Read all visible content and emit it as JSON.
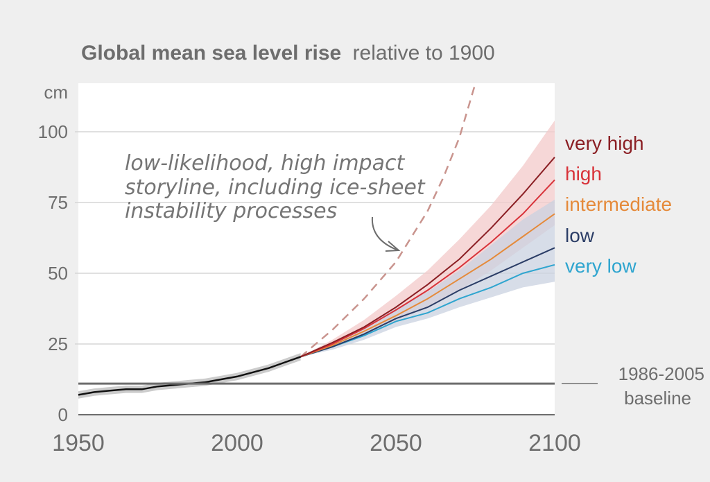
{
  "chart_data": {
    "type": "line",
    "title": "Global mean sea level rise",
    "subtitle": "relative to 1900",
    "ylabel": "cm",
    "xlim": [
      1950,
      2100
    ],
    "ylim": [
      0,
      115
    ],
    "xticks": [
      "1950",
      "2000",
      "2050",
      "2100"
    ],
    "yticks": [
      "0",
      "25",
      "50",
      "75",
      "100"
    ],
    "grid": true,
    "baseline": {
      "value": 11,
      "label_line1": "1986-2005",
      "label_line2": "baseline"
    },
    "annotation": {
      "lines": [
        "low-likelihood, high impact",
        "storyline, including ice-sheet",
        "instability processes"
      ]
    },
    "observed": {
      "x": [
        1950,
        1955,
        1960,
        1965,
        1970,
        1975,
        1980,
        1985,
        1990,
        1995,
        2000,
        2005,
        2010,
        2015,
        2020
      ],
      "y": [
        7,
        8,
        8.5,
        9,
        9,
        10,
        10.5,
        11,
        11.5,
        12.5,
        13.5,
        15,
        16.5,
        18.5,
        20.5
      ]
    },
    "series": [
      {
        "name": "very high",
        "color": "#8b1f24",
        "x": [
          2020,
          2030,
          2040,
          2050,
          2060,
          2070,
          2080,
          2090,
          2100
        ],
        "y": [
          20.5,
          25.5,
          31,
          38,
          46,
          55,
          66,
          78,
          91
        ]
      },
      {
        "name": "high",
        "color": "#d8333a",
        "x": [
          2020,
          2030,
          2040,
          2050,
          2060,
          2070,
          2080,
          2090,
          2100
        ],
        "y": [
          20.5,
          25,
          30.5,
          37,
          44,
          52,
          61,
          71,
          83
        ]
      },
      {
        "name": "intermediate",
        "color": "#e58a3a",
        "x": [
          2020,
          2030,
          2040,
          2050,
          2060,
          2070,
          2080,
          2090,
          2100
        ],
        "y": [
          20.5,
          24.5,
          29.5,
          35,
          41,
          48,
          55,
          63,
          71
        ]
      },
      {
        "name": "low",
        "color": "#2b3d66",
        "x": [
          2020,
          2030,
          2040,
          2050,
          2060,
          2070,
          2080,
          2090,
          2100
        ],
        "y": [
          20.5,
          24,
          28.5,
          34,
          38,
          44,
          49,
          54,
          59
        ]
      },
      {
        "name": "very low",
        "color": "#2fa5cf",
        "x": [
          2020,
          2030,
          2040,
          2050,
          2060,
          2070,
          2080,
          2090,
          2100
        ],
        "y": [
          20.5,
          24,
          28,
          33,
          36,
          41,
          45,
          50,
          53
        ]
      }
    ],
    "storyline": {
      "color": "#c9948e",
      "x": [
        2020,
        2030,
        2040,
        2050,
        2060,
        2065,
        2070,
        2075
      ],
      "y": [
        20.5,
        30,
        41,
        54,
        72,
        84,
        98,
        117
      ]
    },
    "bands": [
      {
        "color": "#f3c9c9",
        "x": [
          2020,
          2030,
          2040,
          2050,
          2060,
          2070,
          2080,
          2090,
          2100
        ],
        "low": [
          20.5,
          24,
          28.5,
          33,
          38,
          44,
          51,
          59,
          67
        ],
        "high": [
          20.5,
          26.5,
          33.5,
          42,
          51,
          62,
          74,
          88,
          104
        ]
      },
      {
        "color": "#c9d2e0",
        "x": [
          2020,
          2030,
          2040,
          2050,
          2060,
          2070,
          2080,
          2090,
          2100
        ],
        "low": [
          20.5,
          23,
          26.5,
          31,
          34,
          38,
          41.5,
          45,
          47
        ],
        "high": [
          20.5,
          25.5,
          31,
          37.5,
          43.5,
          51,
          60,
          69,
          76
        ]
      }
    ],
    "colors": {
      "observed": "#111111",
      "baseline": "#6d6d6d",
      "axis": "#6d6d6d",
      "gridline": "#d5d5d5",
      "observed_band": "#cccccc"
    }
  }
}
